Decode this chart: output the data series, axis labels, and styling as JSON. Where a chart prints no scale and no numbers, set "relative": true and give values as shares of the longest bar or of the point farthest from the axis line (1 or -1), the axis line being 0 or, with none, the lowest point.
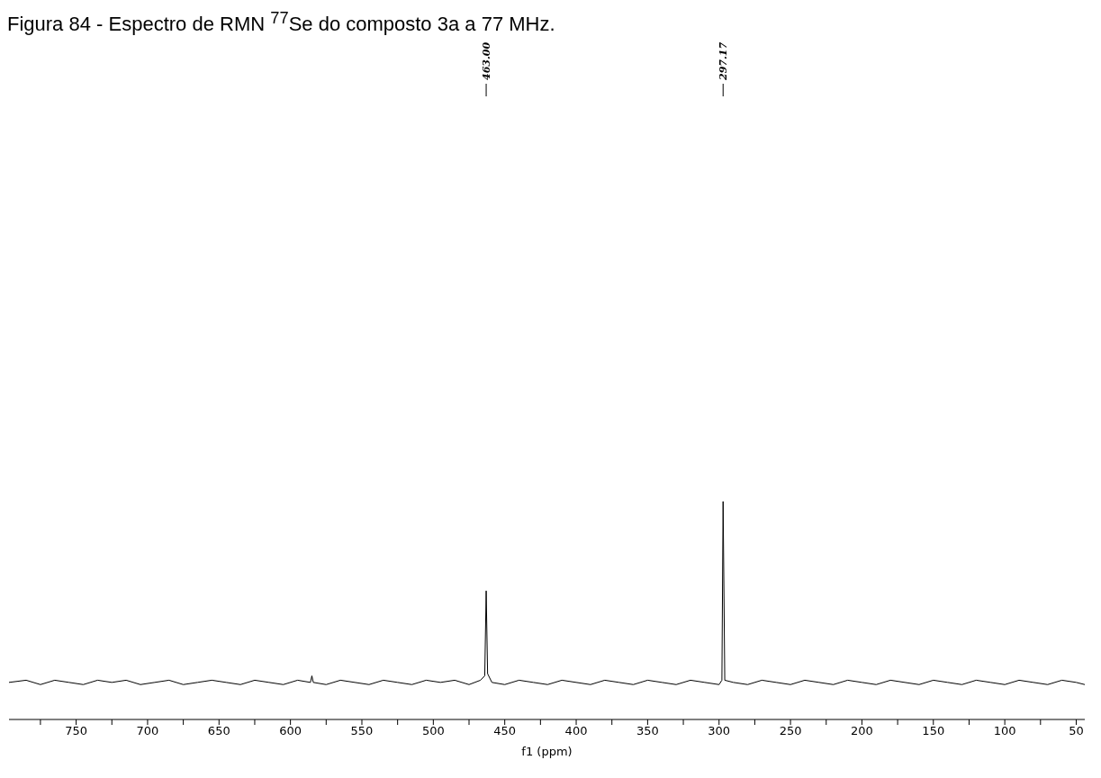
{
  "chart_data": {
    "type": "line",
    "title": "Figura 84 - Espectro de RMN $^{77}$Se do composto 3a a 77 MHz.",
    "xlabel": "f1 (ppm)",
    "relative": true,
    "xlim": [
      797,
      44
    ],
    "xticks": [
      {
        "value": 775,
        "label": null
      },
      750,
      {
        "value": 725,
        "label": null
      },
      700,
      {
        "value": 675,
        "label": null
      },
      650,
      {
        "value": 625,
        "label": null
      },
      600,
      {
        "value": 575,
        "label": null
      },
      550,
      {
        "value": 525,
        "label": null
      },
      500,
      {
        "value": 475,
        "label": null
      },
      450,
      {
        "value": 425,
        "label": null
      },
      400,
      {
        "value": 375,
        "label": null
      },
      350,
      {
        "value": 325,
        "label": null
      },
      300,
      {
        "value": 275,
        "label": null
      },
      250,
      {
        "value": 225,
        "label": null
      },
      200,
      {
        "value": 175,
        "label": null
      },
      150,
      {
        "value": 125,
        "label": null
      },
      100,
      {
        "value": 75,
        "label": null
      },
      50
    ],
    "annotations": [
      {
        "text": "463.00",
        "x": 463
      },
      {
        "text": "297.17",
        "x": 297.17
      }
    ],
    "series": [
      {
        "color": "#000000",
        "x": [
          797,
          785,
          775,
          765,
          755,
          745,
          735,
          725,
          715,
          705,
          695,
          685,
          675,
          665,
          655,
          645,
          635,
          625,
          615,
          605,
          595,
          586,
          585,
          584,
          575,
          565,
          555,
          545,
          535,
          525,
          515,
          505,
          495,
          485,
          475,
          467,
          464,
          463,
          462,
          459,
          450,
          440,
          430,
          420,
          410,
          400,
          390,
          380,
          370,
          360,
          350,
          340,
          330,
          320,
          310,
          300,
          298,
          297.17,
          296,
          290,
          280,
          270,
          260,
          250,
          240,
          230,
          220,
          210,
          200,
          190,
          180,
          170,
          160,
          150,
          140,
          130,
          120,
          110,
          100,
          90,
          80,
          70,
          60,
          50,
          44
        ],
        "values": [
          0.17,
          0.18,
          0.16,
          0.18,
          0.17,
          0.16,
          0.18,
          0.17,
          0.18,
          0.16,
          0.17,
          0.18,
          0.16,
          0.17,
          0.18,
          0.17,
          0.16,
          0.18,
          0.17,
          0.16,
          0.18,
          0.17,
          0.2,
          0.17,
          0.16,
          0.18,
          0.17,
          0.16,
          0.18,
          0.17,
          0.16,
          0.18,
          0.17,
          0.18,
          0.16,
          0.18,
          0.2,
          0.59,
          0.21,
          0.17,
          0.16,
          0.18,
          0.17,
          0.16,
          0.18,
          0.17,
          0.16,
          0.18,
          0.17,
          0.16,
          0.18,
          0.17,
          0.16,
          0.18,
          0.17,
          0.16,
          0.18,
          1,
          0.18,
          0.17,
          0.16,
          0.18,
          0.17,
          0.16,
          0.18,
          0.17,
          0.16,
          0.18,
          0.17,
          0.16,
          0.18,
          0.17,
          0.16,
          0.18,
          0.17,
          0.16,
          0.18,
          0.17,
          0.16,
          0.18,
          0.17,
          0.16,
          0.18,
          0.17,
          0.16
        ]
      }
    ],
    "marker": "none",
    "line_style": "solid"
  }
}
